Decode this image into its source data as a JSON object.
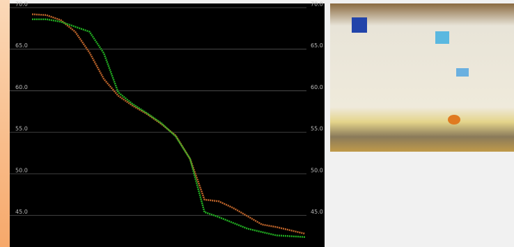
{
  "chart_data": {
    "type": "line",
    "ylim": [
      41.2,
      70.5
    ],
    "yticks": [
      {
        "value": 70,
        "label": "70.0"
      },
      {
        "value": 65,
        "label": "65.0"
      },
      {
        "value": 60,
        "label": "60.0"
      },
      {
        "value": 55,
        "label": "55.0"
      },
      {
        "value": 50,
        "label": "50.0"
      },
      {
        "value": 45,
        "label": "45.0"
      }
    ],
    "grid": true,
    "series": [
      {
        "color": "#c0652a",
        "values": [
          69.2,
          69.1,
          68.5,
          67.1,
          64.6,
          61.4,
          59.4,
          58.2,
          57.2,
          56.0,
          54.6,
          51.8,
          46.9,
          46.7,
          45.9,
          44.9,
          43.9,
          43.6,
          43.2,
          42.8
        ]
      },
      {
        "color": "#22b022",
        "values": [
          68.6,
          68.6,
          68.3,
          67.7,
          67.1,
          64.5,
          59.8,
          58.4,
          57.3,
          56.1,
          54.5,
          51.8,
          45.4,
          44.8,
          44.1,
          43.4,
          43.0,
          42.6,
          42.5,
          42.4
        ]
      }
    ]
  }
}
